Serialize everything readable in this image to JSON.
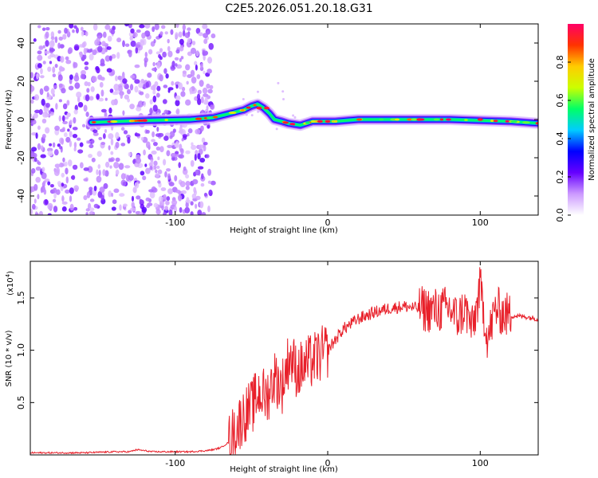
{
  "title": "C2E5.2026.051.20.18.G31",
  "chart_data": [
    {
      "type": "heatmap",
      "title": "C2E5.2026.051.20.18.G31",
      "xlabel": "Height of straight line (km)",
      "ylabel": "Frequency (Hz)",
      "xlim": [
        -195,
        138
      ],
      "ylim": [
        -50,
        50
      ],
      "xticks": [
        -100,
        0,
        100
      ],
      "xtick_labels": [
        "-100",
        "0",
        "100"
      ],
      "yticks": [
        -40,
        -20,
        0,
        20,
        40
      ],
      "ytick_labels": [
        "-40",
        "-20",
        "0",
        "20",
        "40"
      ],
      "colorbar": {
        "label": "Normalized spectral amplitude",
        "range": [
          0.0,
          1.0
        ],
        "ticks": [
          0.0,
          0.2,
          0.4,
          0.6,
          0.8
        ],
        "tick_labels": [
          "0.0",
          "0.2",
          "0.4",
          "0.6",
          "0.8"
        ],
        "colors": [
          "#ffffff",
          "#cc99ff",
          "#6600ff",
          "#0000ff",
          "#00ccff",
          "#00ff66",
          "#ccff00",
          "#ffcc00",
          "#ff3300",
          "#ff0066"
        ]
      },
      "ridge": {
        "x": [
          -155,
          -120,
          -90,
          -75,
          -65,
          -55,
          -50,
          -46,
          -42,
          -38,
          -35,
          -30,
          -26,
          -22,
          -18,
          -14,
          -10,
          -6,
          -2,
          5,
          20,
          40,
          60,
          80,
          100,
          120,
          138
        ],
        "y": [
          -1.5,
          -0.5,
          0,
          1,
          3,
          5,
          7,
          8,
          6,
          3,
          0,
          -1,
          -2,
          -2.5,
          -3,
          -2,
          -1,
          -1,
          -1,
          -1,
          0,
          0,
          0,
          0,
          -0.5,
          -1,
          -2
        ]
      }
    },
    {
      "type": "line",
      "xlabel": "Height of straight line (km)",
      "ylabel": "SNR (10 * v/v)",
      "multiplier_label": "(x10",
      "multiplier_exp": "4",
      "multiplier_close": ")",
      "xlim": [
        -195,
        138
      ],
      "ylim": [
        0,
        1.85
      ],
      "xticks": [
        -100,
        0,
        100
      ],
      "xtick_labels": [
        "-100",
        "0",
        "100"
      ],
      "yticks": [
        0.5,
        1.0,
        1.5
      ],
      "ytick_labels": [
        "0.5",
        "1.0",
        "1.5"
      ],
      "color": "#e8202a",
      "series": [
        {
          "name": "SNR",
          "x": [
            -195,
            -180,
            -160,
            -140,
            -130,
            -125,
            -120,
            -115,
            -100,
            -90,
            -80,
            -75,
            -70,
            -65,
            -60,
            -55,
            -50,
            -45,
            -40,
            -35,
            -30,
            -25,
            -20,
            -15,
            -10,
            -5,
            0,
            5,
            10,
            20,
            30,
            40,
            50,
            60,
            70,
            80,
            85,
            90,
            95,
            100,
            105,
            110,
            115,
            120,
            130,
            138
          ],
          "y": [
            0.02,
            0.02,
            0.02,
            0.03,
            0.03,
            0.05,
            0.04,
            0.03,
            0.03,
            0.03,
            0.04,
            0.05,
            0.07,
            0.12,
            0.25,
            0.38,
            0.45,
            0.6,
            0.55,
            0.75,
            0.65,
            0.95,
            0.8,
            0.85,
            0.9,
            0.95,
            1.0,
            1.1,
            1.2,
            1.3,
            1.36,
            1.4,
            1.42,
            1.4,
            1.38,
            1.4,
            1.3,
            1.4,
            1.2,
            1.6,
            1.1,
            1.4,
            1.35,
            1.33,
            1.32,
            1.3
          ]
        }
      ]
    }
  ]
}
